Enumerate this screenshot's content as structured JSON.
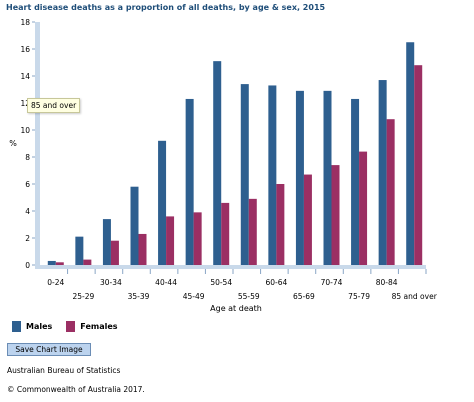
{
  "colors": {
    "males": "#2e5f8f",
    "females": "#9b2f63",
    "title": "#1f4e79"
  },
  "chart_data": {
    "type": "bar",
    "title": "Heart disease deaths as a proportion of all deaths, by age & sex, 2015",
    "xlabel": "Age at death",
    "ylabel": "%",
    "ylim": [
      0,
      18
    ],
    "yticks": [
      "0",
      "2",
      "4",
      "6",
      "8",
      "10",
      "12",
      "14",
      "16",
      "18"
    ],
    "grid": false,
    "legend_position": "bottom-left",
    "categories": [
      "0-24",
      "25-29",
      "30-34",
      "35-39",
      "40-44",
      "45-49",
      "50-54",
      "55-59",
      "60-64",
      "65-69",
      "70-74",
      "75-79",
      "80-84",
      "85 and over"
    ],
    "series": [
      {
        "name": "Males",
        "color": "#2e5f8f",
        "values": [
          0.3,
          2.1,
          3.4,
          5.8,
          9.2,
          12.3,
          15.1,
          13.4,
          13.3,
          12.9,
          12.9,
          12.3,
          13.7,
          16.5
        ]
      },
      {
        "name": "Females",
        "color": "#9b2f63",
        "values": [
          0.2,
          0.4,
          1.8,
          2.3,
          3.6,
          3.9,
          4.6,
          4.9,
          6.0,
          6.7,
          7.4,
          8.4,
          10.8,
          14.8
        ]
      }
    ]
  },
  "tooltip": "85 and over",
  "buttons": {
    "save_chart": "Save Chart Image"
  },
  "footer": {
    "source": "Australian Bureau of Statistics",
    "copyright": "© Commonwealth of Australia 2017."
  }
}
